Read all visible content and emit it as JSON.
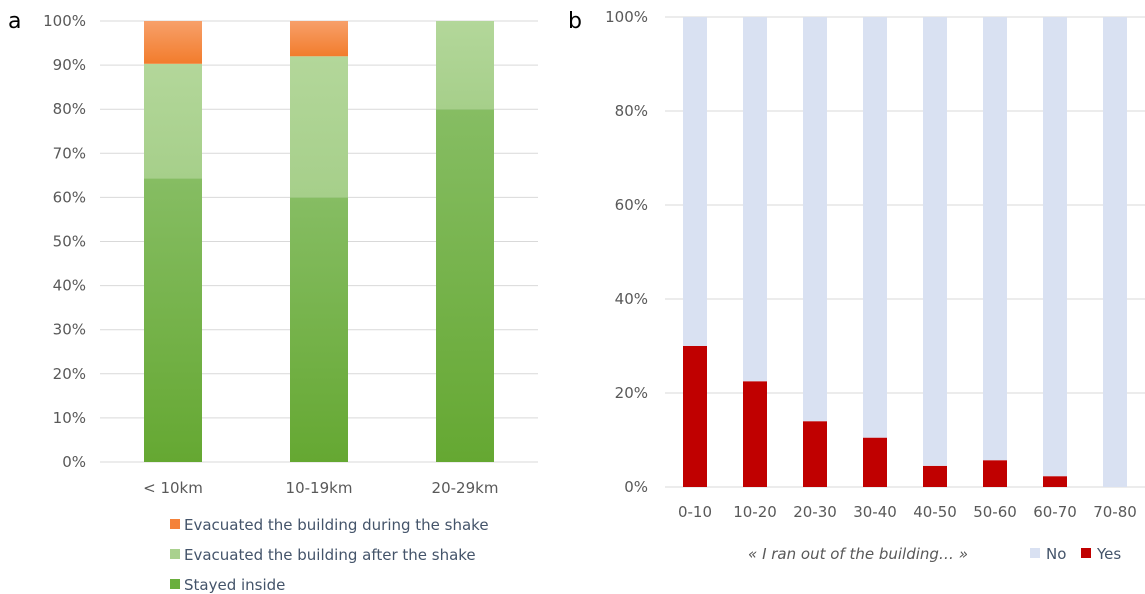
{
  "colors": {
    "during": "#f4823a",
    "after": "#a9d18e",
    "stayed": "#6aaf3d",
    "no": "#d9e1f2",
    "yes": "#c00000",
    "grid": "#d9d9d9",
    "tick_text": "#595959",
    "legend_text": "#44546a"
  },
  "panel_a": {
    "letter": "a",
    "yticks": [
      "0%",
      "10%",
      "20%",
      "30%",
      "40%",
      "50%",
      "60%",
      "70%",
      "80%",
      "90%",
      "100%"
    ],
    "legend": [
      "Evacuated the building during the shake",
      "Evacuated the building after the shake",
      "Stayed inside"
    ]
  },
  "panel_b": {
    "letter": "b",
    "yticks": [
      "0%",
      "20%",
      "40%",
      "60%",
      "80%",
      "100%"
    ],
    "xtitle": "« I ran out of the building… »",
    "legend": [
      "No",
      "Yes"
    ]
  },
  "chart_data": [
    {
      "type": "bar",
      "stacked": true,
      "title": "",
      "xlabel": "",
      "ylabel": "",
      "ylim": [
        0,
        100
      ],
      "unit": "%",
      "categories": [
        "< 10km",
        "10-19km",
        "20-29km"
      ],
      "series": [
        {
          "name": "Stayed inside",
          "color": "#6aaf3d",
          "values": [
            64.3,
            60.0,
            80.0
          ]
        },
        {
          "name": "Evacuated the building after the shake",
          "color": "#a9d18e",
          "values": [
            26.0,
            32.0,
            20.0
          ]
        },
        {
          "name": "Evacuated the building during the shake",
          "color": "#f4823a",
          "values": [
            9.7,
            8.0,
            0.0
          ]
        }
      ],
      "grid": true,
      "legend_position": "bottom"
    },
    {
      "type": "bar",
      "stacked": true,
      "title": "",
      "xlabel": "« I ran out of the building… »",
      "ylabel": "",
      "ylim": [
        0,
        100
      ],
      "unit": "%",
      "categories": [
        "0-10",
        "10-20",
        "20-30",
        "30-40",
        "40-50",
        "50-60",
        "60-70",
        "70-80"
      ],
      "series": [
        {
          "name": "Yes",
          "color": "#c00000",
          "values": [
            30.0,
            22.5,
            14.0,
            10.5,
            4.5,
            5.7,
            2.3,
            0.0
          ]
        },
        {
          "name": "No",
          "color": "#d9e1f2",
          "values": [
            70.0,
            77.5,
            86.0,
            89.5,
            95.5,
            94.3,
            97.7,
            100.0
          ]
        }
      ],
      "grid": true,
      "legend_position": "bottom-right"
    }
  ]
}
